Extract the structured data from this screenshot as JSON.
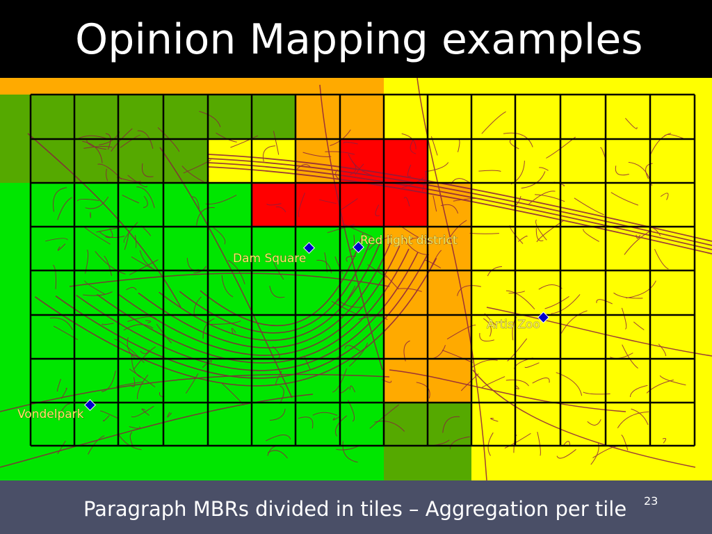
{
  "slide": {
    "title": "Opinion Mapping examples",
    "caption": "Paragraph MBRs divided in tiles – Aggregation per tile",
    "page_number": "23"
  },
  "map": {
    "landmarks": [
      {
        "id": "dam-square",
        "label": "Dam Square"
      },
      {
        "id": "red-light-district",
        "label": "Red light district"
      },
      {
        "id": "artis-zoo",
        "label": "Artis Zoo"
      },
      {
        "id": "vondelpark",
        "label": "Vondelpark"
      }
    ],
    "colors": {
      "green": "#00e600",
      "dark_green": "#55a900",
      "yellow": "#ffff00",
      "orange": "#ffaa00",
      "red": "#ff0000",
      "grid": "#000000",
      "streets": "#8b1e3f",
      "marker": "#0000cc"
    }
  }
}
